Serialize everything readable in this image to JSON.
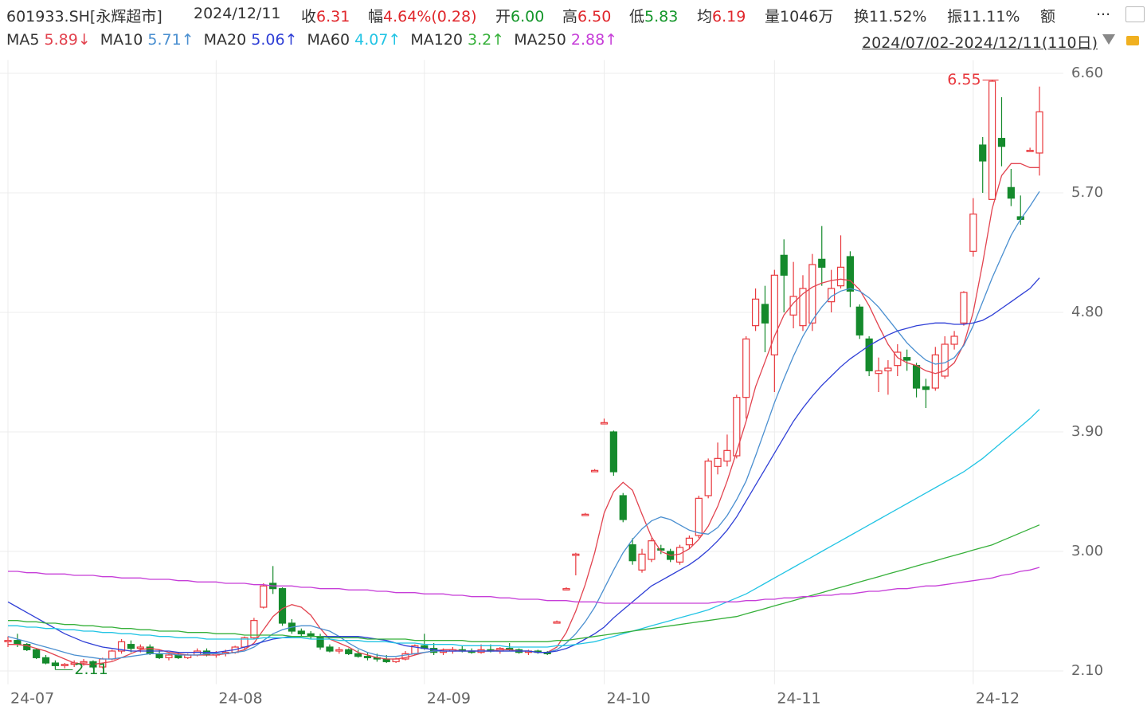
{
  "header": {
    "code": "601933.SH[永辉超市]",
    "date": "2024/12/11",
    "quote": [
      {
        "label": "收",
        "value": "6.31",
        "tone": "up"
      },
      {
        "label": "幅",
        "value": "4.64%(0.28)",
        "tone": "up"
      },
      {
        "label": "开",
        "value": "6.00",
        "tone": "down"
      },
      {
        "label": "高",
        "value": "6.50",
        "tone": "up"
      },
      {
        "label": "低",
        "value": "5.83",
        "tone": "down"
      },
      {
        "label": "均",
        "value": "6.19",
        "tone": "up"
      },
      {
        "label": "量",
        "value": "1046万",
        "tone": "plain"
      },
      {
        "label": "换",
        "value": "11.52%",
        "tone": "plain"
      },
      {
        "label": "振",
        "value": "11.11%",
        "tone": "plain"
      }
    ],
    "amount_label": "额",
    "more": "...",
    "range": "2024/07/02-2024/12/11(110日)"
  },
  "chart_data": {
    "type": "candlestick",
    "categories": [
      "24-07",
      null,
      null,
      null,
      null,
      null,
      null,
      null,
      null,
      null,
      null,
      null,
      null,
      null,
      null,
      null,
      null,
      null,
      null,
      null,
      null,
      null,
      "24-08",
      null,
      null,
      null,
      null,
      null,
      null,
      null,
      null,
      null,
      null,
      null,
      null,
      null,
      null,
      null,
      null,
      null,
      null,
      null,
      null,
      null,
      "24-09",
      null,
      null,
      null,
      null,
      null,
      null,
      null,
      null,
      null,
      null,
      null,
      null,
      null,
      null,
      null,
      null,
      null,
      null,
      "24-10",
      null,
      null,
      null,
      null,
      null,
      null,
      null,
      null,
      null,
      null,
      null,
      null,
      null,
      null,
      null,
      null,
      null,
      "24-11",
      null,
      null,
      null,
      null,
      null,
      null,
      null,
      null,
      null,
      null,
      null,
      null,
      null,
      null,
      null,
      null,
      null,
      null,
      null,
      null,
      "24-12",
      null,
      null,
      null,
      null,
      null,
      null,
      null
    ],
    "open": [
      2.32,
      2.33,
      2.3,
      2.26,
      2.2,
      2.16,
      2.14,
      2.15,
      2.16,
      2.17,
      2.13,
      2.19,
      2.25,
      2.3,
      2.27,
      2.28,
      2.23,
      2.2,
      2.22,
      2.2,
      2.22,
      2.25,
      2.22,
      2.23,
      2.24,
      2.28,
      2.35,
      2.58,
      2.76,
      2.72,
      2.46,
      2.4,
      2.38,
      2.36,
      2.28,
      2.25,
      2.26,
      2.23,
      2.21,
      2.2,
      2.19,
      2.17,
      2.19,
      2.23,
      2.29,
      2.27,
      2.24,
      2.25,
      2.26,
      2.25,
      2.24,
      2.26,
      2.25,
      2.27,
      2.26,
      2.24,
      2.25,
      2.24,
      2.46,
      2.71,
      2.97,
      3.27,
      3.6,
      3.96,
      3.9,
      3.42,
      3.05,
      2.86,
      2.94,
      3.02,
      3.0,
      2.92,
      3.05,
      3.12,
      3.42,
      3.64,
      3.68,
      3.72,
      4.16,
      4.7,
      4.86,
      4.48,
      5.23,
      4.78,
      4.7,
      4.72,
      5.2,
      4.88,
      5.0,
      5.22,
      4.84,
      4.6,
      4.34,
      4.36,
      4.4,
      4.46,
      4.4,
      4.24,
      4.23,
      4.32,
      4.56,
      4.72,
      5.26,
      6.06,
      5.65,
      6.11,
      5.74,
      5.52,
      6.02,
      6.0
    ],
    "high": [
      2.36,
      2.38,
      2.31,
      2.27,
      2.22,
      2.18,
      2.16,
      2.18,
      2.19,
      2.18,
      2.2,
      2.26,
      2.34,
      2.33,
      2.3,
      2.3,
      2.26,
      2.23,
      2.24,
      2.23,
      2.27,
      2.27,
      2.25,
      2.26,
      2.29,
      2.36,
      2.5,
      2.76,
      2.89,
      2.73,
      2.49,
      2.42,
      2.4,
      2.38,
      2.3,
      2.28,
      2.27,
      2.26,
      2.24,
      2.23,
      2.22,
      2.2,
      2.25,
      2.3,
      2.38,
      2.31,
      2.27,
      2.28,
      2.29,
      2.27,
      2.3,
      2.3,
      2.28,
      2.31,
      2.27,
      2.26,
      2.26,
      2.25,
      2.48,
      2.73,
      2.99,
      3.29,
      3.62,
      4.0,
      3.91,
      3.44,
      3.1,
      3.02,
      3.1,
      3.05,
      3.02,
      3.05,
      3.12,
      3.42,
      3.7,
      3.82,
      3.88,
      4.18,
      4.62,
      4.98,
      5.0,
      5.12,
      5.35,
      5.18,
      5.08,
      5.24,
      5.45,
      5.12,
      5.38,
      5.26,
      4.86,
      4.62,
      4.46,
      4.44,
      4.56,
      4.52,
      4.42,
      4.3,
      4.54,
      4.62,
      4.66,
      4.96,
      5.66,
      6.12,
      6.55,
      6.42,
      5.88,
      5.68,
      6.04,
      6.5
    ],
    "low": [
      2.28,
      2.28,
      2.25,
      2.19,
      2.15,
      2.11,
      2.12,
      2.13,
      2.14,
      2.12,
      2.12,
      2.18,
      2.23,
      2.24,
      2.24,
      2.22,
      2.19,
      2.18,
      2.19,
      2.19,
      2.21,
      2.21,
      2.2,
      2.21,
      2.23,
      2.26,
      2.34,
      2.57,
      2.68,
      2.44,
      2.38,
      2.36,
      2.34,
      2.26,
      2.24,
      2.23,
      2.22,
      2.2,
      2.18,
      2.17,
      2.16,
      2.16,
      2.18,
      2.22,
      2.26,
      2.22,
      2.22,
      2.23,
      2.24,
      2.23,
      2.23,
      2.24,
      2.23,
      2.25,
      2.23,
      2.22,
      2.23,
      2.22,
      2.46,
      2.71,
      2.82,
      3.27,
      3.6,
      3.96,
      3.57,
      3.22,
      2.9,
      2.84,
      2.92,
      2.98,
      2.92,
      2.9,
      3.02,
      3.1,
      3.4,
      3.58,
      3.64,
      3.7,
      4.0,
      4.66,
      4.5,
      4.2,
      4.8,
      4.68,
      4.66,
      4.66,
      5.0,
      4.8,
      4.98,
      4.84,
      4.6,
      4.32,
      4.2,
      4.18,
      4.32,
      4.36,
      4.16,
      4.08,
      4.21,
      4.3,
      4.52,
      4.7,
      5.22,
      5.7,
      5.65,
      5.9,
      5.6,
      5.46,
      6.01,
      5.83
    ],
    "close": [
      2.33,
      2.3,
      2.26,
      2.2,
      2.16,
      2.14,
      2.15,
      2.16,
      2.17,
      2.13,
      2.19,
      2.25,
      2.32,
      2.27,
      2.28,
      2.23,
      2.2,
      2.22,
      2.2,
      2.22,
      2.25,
      2.22,
      2.23,
      2.24,
      2.28,
      2.35,
      2.48,
      2.74,
      2.72,
      2.46,
      2.4,
      2.38,
      2.36,
      2.28,
      2.25,
      2.26,
      2.23,
      2.21,
      2.2,
      2.19,
      2.17,
      2.19,
      2.23,
      2.29,
      2.27,
      2.24,
      2.25,
      2.26,
      2.25,
      2.24,
      2.26,
      2.25,
      2.27,
      2.26,
      2.24,
      2.25,
      2.24,
      2.23,
      2.47,
      2.72,
      2.98,
      3.28,
      3.61,
      3.97,
      3.6,
      3.24,
      2.93,
      2.98,
      3.08,
      3.01,
      2.94,
      3.03,
      3.1,
      3.4,
      3.68,
      3.7,
      3.76,
      4.16,
      4.6,
      4.9,
      4.72,
      5.08,
      5.08,
      4.92,
      4.98,
      5.16,
      5.14,
      4.98,
      5.14,
      4.96,
      4.63,
      4.36,
      4.36,
      4.38,
      4.5,
      4.44,
      4.23,
      4.22,
      4.48,
      4.56,
      4.62,
      4.95,
      5.54,
      5.94,
      6.54,
      6.05,
      5.66,
      5.5,
      6.02,
      6.31
    ],
    "up_color": "#e8383d",
    "down_color": "#158a2c",
    "series": [
      {
        "name": "MA5",
        "color": "#e2434f",
        "last": 5.89,
        "trend": "↓",
        "values": [
          2.3,
          2.3,
          2.29,
          2.27,
          2.25,
          2.22,
          2.19,
          2.16,
          2.15,
          2.15,
          2.16,
          2.17,
          2.2,
          2.23,
          2.26,
          2.27,
          2.26,
          2.24,
          2.23,
          2.22,
          2.22,
          2.22,
          2.22,
          2.23,
          2.24,
          2.26,
          2.31,
          2.41,
          2.51,
          2.57,
          2.6,
          2.58,
          2.52,
          2.42,
          2.34,
          2.31,
          2.28,
          2.24,
          2.22,
          2.2,
          2.19,
          2.19,
          2.2,
          2.22,
          2.24,
          2.25,
          2.26,
          2.26,
          2.25,
          2.25,
          2.25,
          2.25,
          2.26,
          2.26,
          2.25,
          2.25,
          2.24,
          2.24,
          2.28,
          2.39,
          2.55,
          2.75,
          2.99,
          3.29,
          3.45,
          3.52,
          3.46,
          3.28,
          3.11,
          3.0,
          2.97,
          2.98,
          3.02,
          3.09,
          3.19,
          3.34,
          3.53,
          3.75,
          3.98,
          4.24,
          4.43,
          4.62,
          4.78,
          4.87,
          4.94,
          4.99,
          5.02,
          5.04,
          5.05,
          5.04,
          4.97,
          4.85,
          4.7,
          4.56,
          4.46,
          4.42,
          4.4,
          4.36,
          4.34,
          4.36,
          4.42,
          4.56,
          4.8,
          5.17,
          5.58,
          5.83,
          5.92,
          5.92,
          5.89,
          5.89
        ]
      },
      {
        "name": "MA10",
        "color": "#4a8fd0",
        "last": 5.71,
        "trend": "↑",
        "values": [
          2.36,
          2.34,
          2.32,
          2.3,
          2.28,
          2.26,
          2.24,
          2.22,
          2.21,
          2.2,
          2.19,
          2.19,
          2.2,
          2.21,
          2.22,
          2.23,
          2.23,
          2.23,
          2.22,
          2.22,
          2.22,
          2.23,
          2.23,
          2.23,
          2.24,
          2.25,
          2.28,
          2.33,
          2.38,
          2.41,
          2.43,
          2.44,
          2.44,
          2.42,
          2.4,
          2.36,
          2.31,
          2.27,
          2.24,
          2.22,
          2.21,
          2.21,
          2.22,
          2.23,
          2.24,
          2.25,
          2.25,
          2.25,
          2.25,
          2.25,
          2.25,
          2.25,
          2.25,
          2.25,
          2.25,
          2.25,
          2.24,
          2.24,
          2.26,
          2.31,
          2.38,
          2.47,
          2.58,
          2.72,
          2.86,
          2.99,
          3.09,
          3.17,
          3.23,
          3.26,
          3.24,
          3.2,
          3.16,
          3.14,
          3.13,
          3.18,
          3.27,
          3.39,
          3.53,
          3.72,
          3.92,
          4.12,
          4.3,
          4.47,
          4.62,
          4.74,
          4.84,
          4.92,
          4.96,
          4.98,
          4.96,
          4.91,
          4.84,
          4.75,
          4.66,
          4.57,
          4.5,
          4.44,
          4.41,
          4.42,
          4.46,
          4.55,
          4.7,
          4.88,
          5.06,
          5.22,
          5.38,
          5.5,
          5.6,
          5.71
        ]
      },
      {
        "name": "MA20",
        "color": "#2f3fd6",
        "last": 5.06,
        "trend": "↑",
        "values": [
          2.62,
          2.58,
          2.54,
          2.5,
          2.46,
          2.42,
          2.38,
          2.35,
          2.32,
          2.3,
          2.28,
          2.27,
          2.26,
          2.25,
          2.25,
          2.25,
          2.25,
          2.25,
          2.24,
          2.24,
          2.24,
          2.24,
          2.24,
          2.25,
          2.26,
          2.28,
          2.3,
          2.32,
          2.34,
          2.35,
          2.36,
          2.36,
          2.36,
          2.36,
          2.36,
          2.36,
          2.36,
          2.36,
          2.35,
          2.34,
          2.33,
          2.31,
          2.29,
          2.28,
          2.27,
          2.26,
          2.25,
          2.25,
          2.25,
          2.25,
          2.25,
          2.25,
          2.25,
          2.25,
          2.25,
          2.25,
          2.24,
          2.24,
          2.25,
          2.27,
          2.3,
          2.34,
          2.38,
          2.43,
          2.5,
          2.56,
          2.62,
          2.68,
          2.74,
          2.78,
          2.82,
          2.86,
          2.9,
          2.95,
          3.01,
          3.08,
          3.16,
          3.26,
          3.38,
          3.5,
          3.62,
          3.74,
          3.86,
          3.98,
          4.08,
          4.17,
          4.25,
          4.32,
          4.39,
          4.45,
          4.5,
          4.55,
          4.59,
          4.63,
          4.66,
          4.68,
          4.7,
          4.71,
          4.72,
          4.72,
          4.71,
          4.71,
          4.72,
          4.74,
          4.78,
          4.83,
          4.88,
          4.93,
          4.98,
          5.06
        ]
      },
      {
        "name": "MA60",
        "color": "#22c4e4",
        "last": 4.07,
        "trend": "↑",
        "values": [
          2.44,
          2.44,
          2.43,
          2.43,
          2.42,
          2.42,
          2.41,
          2.41,
          2.4,
          2.4,
          2.39,
          2.39,
          2.38,
          2.38,
          2.37,
          2.37,
          2.36,
          2.36,
          2.35,
          2.35,
          2.35,
          2.34,
          2.34,
          2.34,
          2.34,
          2.34,
          2.34,
          2.35,
          2.35,
          2.35,
          2.35,
          2.35,
          2.34,
          2.34,
          2.34,
          2.33,
          2.33,
          2.33,
          2.32,
          2.32,
          2.32,
          2.31,
          2.31,
          2.31,
          2.3,
          2.3,
          2.3,
          2.3,
          2.29,
          2.29,
          2.29,
          2.29,
          2.29,
          2.28,
          2.28,
          2.28,
          2.28,
          2.28,
          2.29,
          2.29,
          2.3,
          2.31,
          2.32,
          2.34,
          2.36,
          2.38,
          2.4,
          2.42,
          2.44,
          2.46,
          2.48,
          2.5,
          2.52,
          2.54,
          2.56,
          2.59,
          2.62,
          2.65,
          2.68,
          2.72,
          2.76,
          2.8,
          2.84,
          2.88,
          2.92,
          2.96,
          3.0,
          3.04,
          3.08,
          3.12,
          3.16,
          3.2,
          3.24,
          3.28,
          3.32,
          3.36,
          3.4,
          3.44,
          3.48,
          3.52,
          3.56,
          3.6,
          3.65,
          3.7,
          3.76,
          3.82,
          3.88,
          3.94,
          4.0,
          4.07
        ]
      },
      {
        "name": "MA120",
        "color": "#36b03a",
        "last": 3.2,
        "trend": "↑",
        "values": [
          2.48,
          2.48,
          2.47,
          2.47,
          2.46,
          2.46,
          2.45,
          2.45,
          2.44,
          2.44,
          2.43,
          2.43,
          2.42,
          2.42,
          2.41,
          2.41,
          2.4,
          2.4,
          2.4,
          2.39,
          2.39,
          2.39,
          2.38,
          2.38,
          2.38,
          2.37,
          2.37,
          2.37,
          2.37,
          2.37,
          2.36,
          2.36,
          2.36,
          2.36,
          2.35,
          2.35,
          2.35,
          2.35,
          2.34,
          2.34,
          2.34,
          2.34,
          2.34,
          2.33,
          2.33,
          2.33,
          2.33,
          2.33,
          2.33,
          2.32,
          2.32,
          2.32,
          2.32,
          2.32,
          2.32,
          2.32,
          2.32,
          2.32,
          2.33,
          2.33,
          2.34,
          2.35,
          2.36,
          2.37,
          2.38,
          2.39,
          2.4,
          2.41,
          2.42,
          2.43,
          2.44,
          2.45,
          2.46,
          2.47,
          2.48,
          2.49,
          2.5,
          2.51,
          2.53,
          2.55,
          2.57,
          2.59,
          2.61,
          2.63,
          2.65,
          2.67,
          2.69,
          2.71,
          2.73,
          2.75,
          2.77,
          2.79,
          2.81,
          2.83,
          2.85,
          2.87,
          2.89,
          2.91,
          2.93,
          2.95,
          2.97,
          2.99,
          3.01,
          3.03,
          3.05,
          3.08,
          3.11,
          3.14,
          3.17,
          3.2
        ]
      },
      {
        "name": "MA250",
        "color": "#c63ed8",
        "last": 2.88,
        "trend": "↑",
        "values": [
          2.85,
          2.85,
          2.84,
          2.84,
          2.83,
          2.83,
          2.83,
          2.82,
          2.82,
          2.82,
          2.81,
          2.81,
          2.8,
          2.8,
          2.8,
          2.79,
          2.79,
          2.79,
          2.78,
          2.78,
          2.77,
          2.77,
          2.77,
          2.76,
          2.76,
          2.76,
          2.75,
          2.75,
          2.74,
          2.74,
          2.74,
          2.73,
          2.73,
          2.72,
          2.72,
          2.72,
          2.71,
          2.71,
          2.71,
          2.7,
          2.7,
          2.69,
          2.69,
          2.69,
          2.68,
          2.68,
          2.68,
          2.67,
          2.67,
          2.66,
          2.66,
          2.66,
          2.65,
          2.65,
          2.64,
          2.64,
          2.64,
          2.63,
          2.63,
          2.63,
          2.62,
          2.62,
          2.62,
          2.61,
          2.61,
          2.61,
          2.61,
          2.61,
          2.61,
          2.61,
          2.61,
          2.61,
          2.61,
          2.61,
          2.61,
          2.62,
          2.62,
          2.62,
          2.63,
          2.63,
          2.64,
          2.64,
          2.65,
          2.65,
          2.66,
          2.66,
          2.67,
          2.67,
          2.68,
          2.68,
          2.69,
          2.7,
          2.7,
          2.71,
          2.72,
          2.72,
          2.73,
          2.74,
          2.74,
          2.75,
          2.76,
          2.77,
          2.78,
          2.79,
          2.8,
          2.82,
          2.83,
          2.85,
          2.86,
          2.88
        ]
      }
    ],
    "ylim": [
      2.0,
      6.64
    ],
    "yticks": [
      {
        "value": 2.1,
        "label": "2.10"
      },
      {
        "value": 3.0,
        "label": "3.00"
      },
      {
        "value": 3.9,
        "label": "3.90"
      },
      {
        "value": 4.8,
        "label": "4.80"
      },
      {
        "value": 5.7,
        "label": "5.70"
      },
      {
        "value": 6.6,
        "label": "6.60"
      }
    ],
    "grid": true,
    "annotations": {
      "max": 6.55,
      "min": 2.11
    }
  }
}
